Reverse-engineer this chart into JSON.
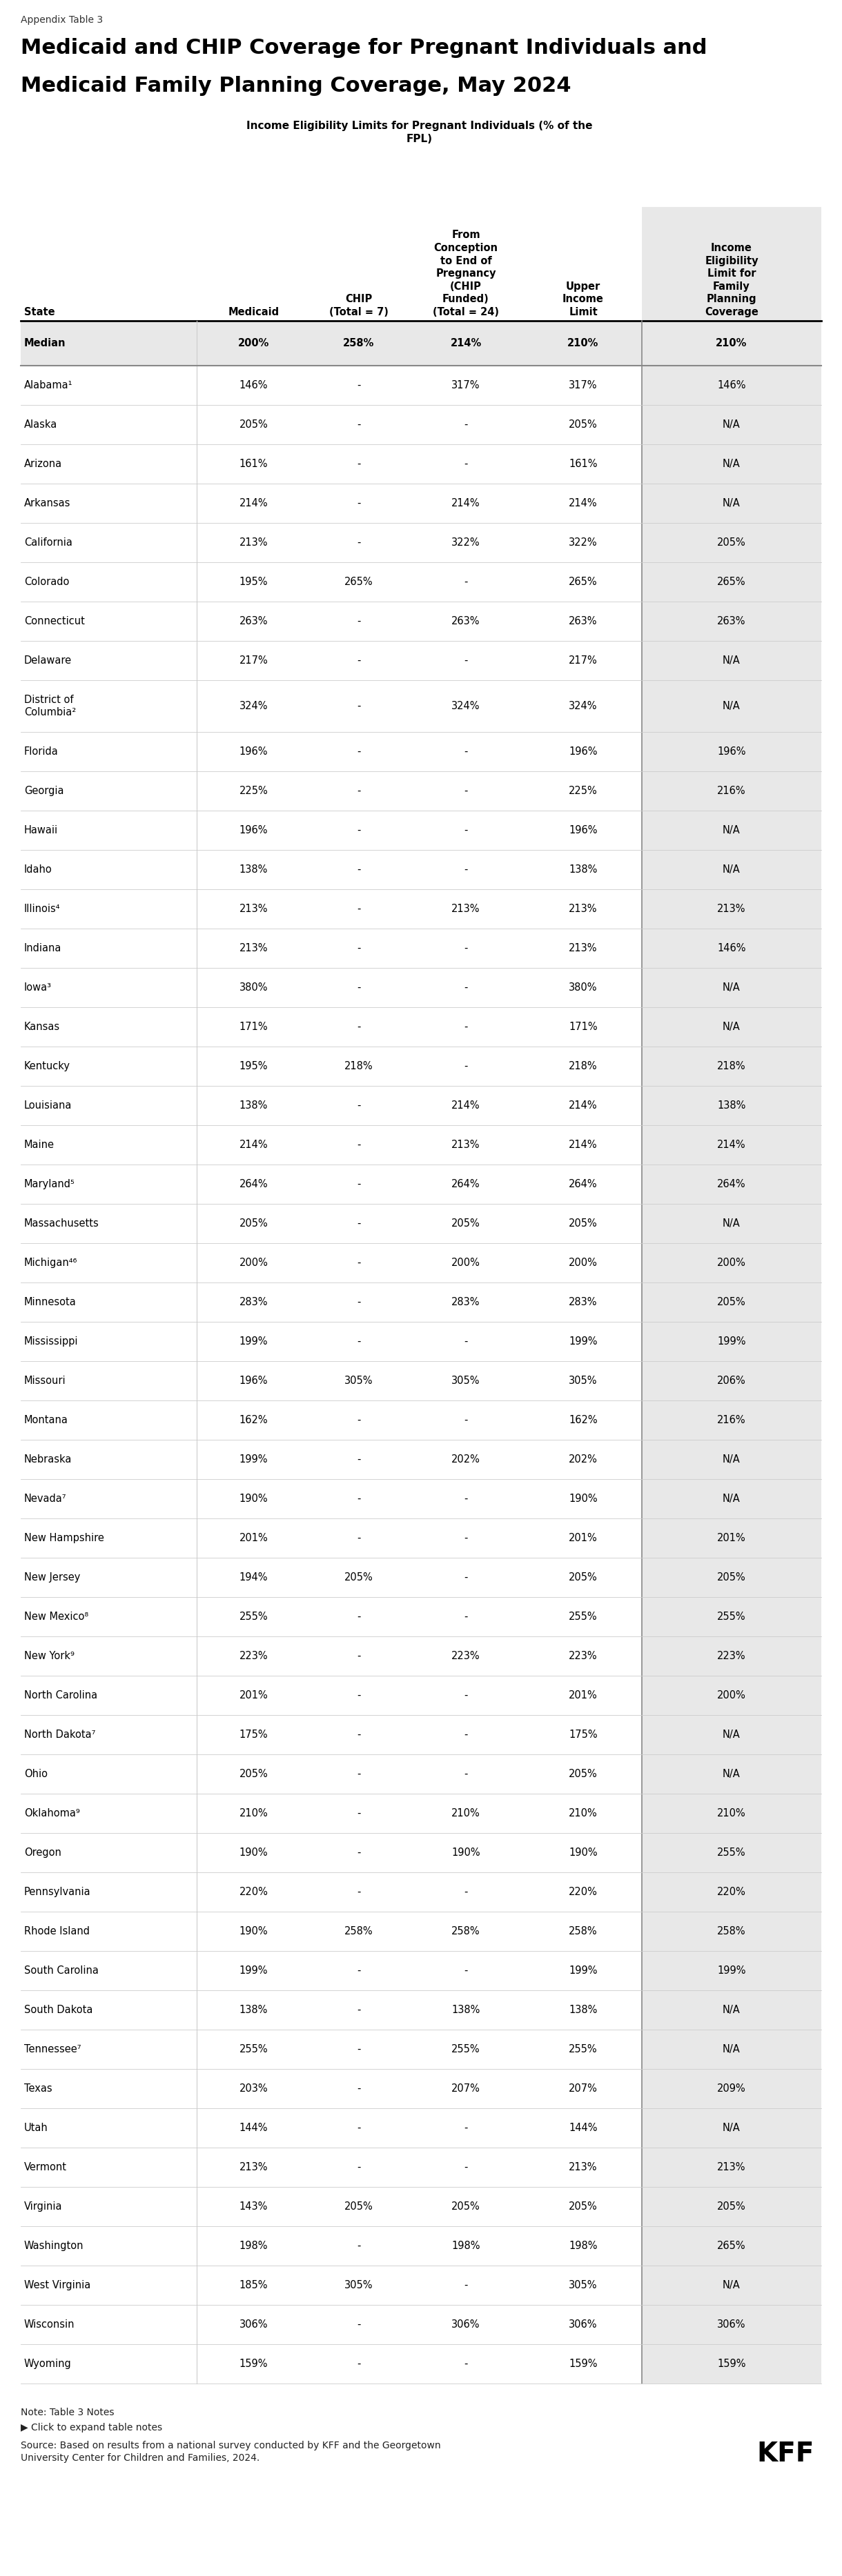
{
  "appendix_label": "Appendix Table 3",
  "title_line1": "Medicaid and CHIP Coverage for Pregnant Individuals and",
  "title_line2": "Medicaid Family Planning Coverage, May 2024",
  "subtitle": "Income Eligibility Limits for Pregnant Individuals (% of the\nFPL)",
  "col_headers": [
    "State",
    "Medicaid",
    "CHIP\n(Total = 7)",
    "From\nConception\nto End of\nPregnancy\n(CHIP\nFunded)\n(Total = 24)",
    "Upper\nIncome\nLimit",
    "Income\nEligibility\nLimit for\nFamily\nPlanning\nCoverage"
  ],
  "rows": [
    {
      "state": "Median",
      "medicaid": "200%",
      "chip": "258%",
      "chip_funded": "214%",
      "upper": "210%",
      "family": "210%",
      "is_median": true
    },
    {
      "state": "Alabama¹",
      "medicaid": "146%",
      "chip": "-",
      "chip_funded": "317%",
      "upper": "317%",
      "family": "146%",
      "is_median": false
    },
    {
      "state": "Alaska",
      "medicaid": "205%",
      "chip": "-",
      "chip_funded": "-",
      "upper": "205%",
      "family": "N/A",
      "is_median": false
    },
    {
      "state": "Arizona",
      "medicaid": "161%",
      "chip": "-",
      "chip_funded": "-",
      "upper": "161%",
      "family": "N/A",
      "is_median": false
    },
    {
      "state": "Arkansas",
      "medicaid": "214%",
      "chip": "-",
      "chip_funded": "214%",
      "upper": "214%",
      "family": "N/A",
      "is_median": false
    },
    {
      "state": "California",
      "medicaid": "213%",
      "chip": "-",
      "chip_funded": "322%",
      "upper": "322%",
      "family": "205%",
      "is_median": false
    },
    {
      "state": "Colorado",
      "medicaid": "195%",
      "chip": "265%",
      "chip_funded": "-",
      "upper": "265%",
      "family": "265%",
      "is_median": false
    },
    {
      "state": "Connecticut",
      "medicaid": "263%",
      "chip": "-",
      "chip_funded": "263%",
      "upper": "263%",
      "family": "263%",
      "is_median": false
    },
    {
      "state": "Delaware",
      "medicaid": "217%",
      "chip": "-",
      "chip_funded": "-",
      "upper": "217%",
      "family": "N/A",
      "is_median": false
    },
    {
      "state": "District of\nColumbia²",
      "medicaid": "324%",
      "chip": "-",
      "chip_funded": "324%",
      "upper": "324%",
      "family": "N/A",
      "is_median": false
    },
    {
      "state": "Florida",
      "medicaid": "196%",
      "chip": "-",
      "chip_funded": "-",
      "upper": "196%",
      "family": "196%",
      "is_median": false
    },
    {
      "state": "Georgia",
      "medicaid": "225%",
      "chip": "-",
      "chip_funded": "-",
      "upper": "225%",
      "family": "216%",
      "is_median": false
    },
    {
      "state": "Hawaii",
      "medicaid": "196%",
      "chip": "-",
      "chip_funded": "-",
      "upper": "196%",
      "family": "N/A",
      "is_median": false
    },
    {
      "state": "Idaho",
      "medicaid": "138%",
      "chip": "-",
      "chip_funded": "-",
      "upper": "138%",
      "family": "N/A",
      "is_median": false
    },
    {
      "state": "Illinois⁴",
      "medicaid": "213%",
      "chip": "-",
      "chip_funded": "213%",
      "upper": "213%",
      "family": "213%",
      "is_median": false
    },
    {
      "state": "Indiana",
      "medicaid": "213%",
      "chip": "-",
      "chip_funded": "-",
      "upper": "213%",
      "family": "146%",
      "is_median": false
    },
    {
      "state": "Iowa³",
      "medicaid": "380%",
      "chip": "-",
      "chip_funded": "-",
      "upper": "380%",
      "family": "N/A",
      "is_median": false
    },
    {
      "state": "Kansas",
      "medicaid": "171%",
      "chip": "-",
      "chip_funded": "-",
      "upper": "171%",
      "family": "N/A",
      "is_median": false
    },
    {
      "state": "Kentucky",
      "medicaid": "195%",
      "chip": "218%",
      "chip_funded": "-",
      "upper": "218%",
      "family": "218%",
      "is_median": false
    },
    {
      "state": "Louisiana",
      "medicaid": "138%",
      "chip": "-",
      "chip_funded": "214%",
      "upper": "214%",
      "family": "138%",
      "is_median": false
    },
    {
      "state": "Maine",
      "medicaid": "214%",
      "chip": "-",
      "chip_funded": "213%",
      "upper": "214%",
      "family": "214%",
      "is_median": false
    },
    {
      "state": "Maryland⁵",
      "medicaid": "264%",
      "chip": "-",
      "chip_funded": "264%",
      "upper": "264%",
      "family": "264%",
      "is_median": false
    },
    {
      "state": "Massachusetts",
      "medicaid": "205%",
      "chip": "-",
      "chip_funded": "205%",
      "upper": "205%",
      "family": "N/A",
      "is_median": false
    },
    {
      "state": "Michigan⁴⁶",
      "medicaid": "200%",
      "chip": "-",
      "chip_funded": "200%",
      "upper": "200%",
      "family": "200%",
      "is_median": false
    },
    {
      "state": "Minnesota",
      "medicaid": "283%",
      "chip": "-",
      "chip_funded": "283%",
      "upper": "283%",
      "family": "205%",
      "is_median": false
    },
    {
      "state": "Mississippi",
      "medicaid": "199%",
      "chip": "-",
      "chip_funded": "-",
      "upper": "199%",
      "family": "199%",
      "is_median": false
    },
    {
      "state": "Missouri",
      "medicaid": "196%",
      "chip": "305%",
      "chip_funded": "305%",
      "upper": "305%",
      "family": "206%",
      "is_median": false
    },
    {
      "state": "Montana",
      "medicaid": "162%",
      "chip": "-",
      "chip_funded": "-",
      "upper": "162%",
      "family": "216%",
      "is_median": false
    },
    {
      "state": "Nebraska",
      "medicaid": "199%",
      "chip": "-",
      "chip_funded": "202%",
      "upper": "202%",
      "family": "N/A",
      "is_median": false
    },
    {
      "state": "Nevada⁷",
      "medicaid": "190%",
      "chip": "-",
      "chip_funded": "-",
      "upper": "190%",
      "family": "N/A",
      "is_median": false
    },
    {
      "state": "New Hampshire",
      "medicaid": "201%",
      "chip": "-",
      "chip_funded": "-",
      "upper": "201%",
      "family": "201%",
      "is_median": false
    },
    {
      "state": "New Jersey",
      "medicaid": "194%",
      "chip": "205%",
      "chip_funded": "-",
      "upper": "205%",
      "family": "205%",
      "is_median": false
    },
    {
      "state": "New Mexico⁸",
      "medicaid": "255%",
      "chip": "-",
      "chip_funded": "-",
      "upper": "255%",
      "family": "255%",
      "is_median": false
    },
    {
      "state": "New York⁹",
      "medicaid": "223%",
      "chip": "-",
      "chip_funded": "223%",
      "upper": "223%",
      "family": "223%",
      "is_median": false
    },
    {
      "state": "North Carolina",
      "medicaid": "201%",
      "chip": "-",
      "chip_funded": "-",
      "upper": "201%",
      "family": "200%",
      "is_median": false
    },
    {
      "state": "North Dakota⁷",
      "medicaid": "175%",
      "chip": "-",
      "chip_funded": "-",
      "upper": "175%",
      "family": "N/A",
      "is_median": false
    },
    {
      "state": "Ohio",
      "medicaid": "205%",
      "chip": "-",
      "chip_funded": "-",
      "upper": "205%",
      "family": "N/A",
      "is_median": false
    },
    {
      "state": "Oklahoma⁹",
      "medicaid": "210%",
      "chip": "-",
      "chip_funded": "210%",
      "upper": "210%",
      "family": "210%",
      "is_median": false
    },
    {
      "state": "Oregon",
      "medicaid": "190%",
      "chip": "-",
      "chip_funded": "190%",
      "upper": "190%",
      "family": "255%",
      "is_median": false
    },
    {
      "state": "Pennsylvania",
      "medicaid": "220%",
      "chip": "-",
      "chip_funded": "-",
      "upper": "220%",
      "family": "220%",
      "is_median": false
    },
    {
      "state": "Rhode Island",
      "medicaid": "190%",
      "chip": "258%",
      "chip_funded": "258%",
      "upper": "258%",
      "family": "258%",
      "is_median": false
    },
    {
      "state": "South Carolina",
      "medicaid": "199%",
      "chip": "-",
      "chip_funded": "-",
      "upper": "199%",
      "family": "199%",
      "is_median": false
    },
    {
      "state": "South Dakota",
      "medicaid": "138%",
      "chip": "-",
      "chip_funded": "138%",
      "upper": "138%",
      "family": "N/A",
      "is_median": false
    },
    {
      "state": "Tennessee⁷",
      "medicaid": "255%",
      "chip": "-",
      "chip_funded": "255%",
      "upper": "255%",
      "family": "N/A",
      "is_median": false
    },
    {
      "state": "Texas",
      "medicaid": "203%",
      "chip": "-",
      "chip_funded": "207%",
      "upper": "207%",
      "family": "209%",
      "is_median": false
    },
    {
      "state": "Utah",
      "medicaid": "144%",
      "chip": "-",
      "chip_funded": "-",
      "upper": "144%",
      "family": "N/A",
      "is_median": false
    },
    {
      "state": "Vermont",
      "medicaid": "213%",
      "chip": "-",
      "chip_funded": "-",
      "upper": "213%",
      "family": "213%",
      "is_median": false
    },
    {
      "state": "Virginia",
      "medicaid": "143%",
      "chip": "205%",
      "chip_funded": "205%",
      "upper": "205%",
      "family": "205%",
      "is_median": false
    },
    {
      "state": "Washington",
      "medicaid": "198%",
      "chip": "-",
      "chip_funded": "198%",
      "upper": "198%",
      "family": "265%",
      "is_median": false
    },
    {
      "state": "West Virginia",
      "medicaid": "185%",
      "chip": "305%",
      "chip_funded": "-",
      "upper": "305%",
      "family": "N/A",
      "is_median": false
    },
    {
      "state": "Wisconsin",
      "medicaid": "306%",
      "chip": "-",
      "chip_funded": "306%",
      "upper": "306%",
      "family": "306%",
      "is_median": false
    },
    {
      "state": "Wyoming",
      "medicaid": "159%",
      "chip": "-",
      "chip_funded": "-",
      "upper": "159%",
      "family": "159%",
      "is_median": false
    }
  ],
  "note_line1": "Note: Table 3 Notes",
  "note_line2": "▶ Click to expand table notes",
  "source_text": "Source: Based on results from a national survey conducted by KFF and the Georgetown\nUniversity Center for Children and Families, 2024.",
  "kff_logo": "KFF",
  "shaded_color": "#e8e8e8",
  "white": "#ffffff",
  "line_color_heavy": "#000000",
  "line_color_light": "#cccccc",
  "vline_color": "#888888"
}
